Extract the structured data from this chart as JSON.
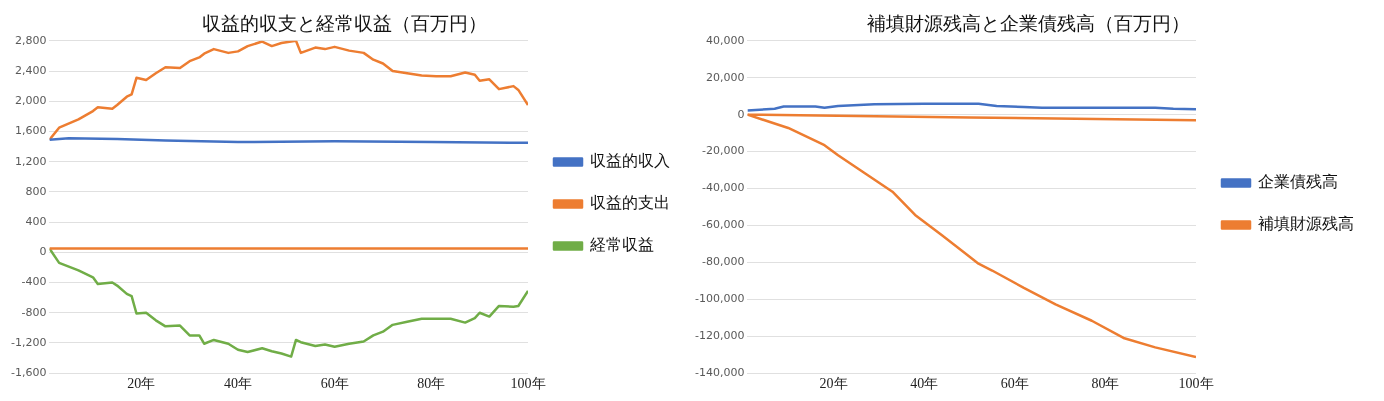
{
  "chart_data": [
    {
      "type": "line",
      "title": "収益的収支と経常収益（百万円）",
      "xlim": [
        1,
        100
      ],
      "xticks": [
        {
          "value": 20,
          "label": "20年"
        },
        {
          "value": 40,
          "label": "40年"
        },
        {
          "value": 60,
          "label": "60年"
        },
        {
          "value": 80,
          "label": "80年"
        },
        {
          "value": 100,
          "label": "100年"
        }
      ],
      "ylim": [
        -1600,
        2800
      ],
      "yticks": [
        {
          "value": -1600,
          "label": "-1,600"
        },
        {
          "value": -1200,
          "label": "-1,200"
        },
        -800,
        -400,
        0,
        400,
        800,
        {
          "value": 1200,
          "label": "1,200"
        },
        {
          "value": 1600,
          "label": "1,600"
        },
        {
          "value": 2000,
          "label": "2,000"
        },
        {
          "value": 2400,
          "label": "2,400"
        },
        {
          "value": 2800,
          "label": "2,800"
        }
      ],
      "grid": "y",
      "legend": "right",
      "marker": "none",
      "series": [
        {
          "name": "収益的収入",
          "color": "#4472c4",
          "x": [
            1,
            5,
            15,
            25,
            40,
            60,
            80,
            100
          ],
          "values": [
            1490,
            1510,
            1500,
            1480,
            1460,
            1470,
            1460,
            1450
          ]
        },
        {
          "name": "収益的支出",
          "color": "#ed7d31",
          "x": [
            1,
            3,
            7,
            10,
            11,
            14,
            15,
            17,
            18,
            19,
            21,
            23,
            25,
            28,
            30,
            32,
            33,
            35,
            38,
            40,
            42,
            45,
            47,
            49,
            51,
            52,
            53,
            56,
            58,
            60,
            63,
            66,
            68,
            70,
            72,
            75,
            78,
            81,
            84,
            87,
            89,
            90,
            92,
            94,
            97,
            98,
            100
          ],
          "values": [
            1490,
            1650,
            1760,
            1870,
            1920,
            1900,
            1950,
            2060,
            2090,
            2310,
            2280,
            2370,
            2450,
            2440,
            2530,
            2580,
            2630,
            2690,
            2640,
            2660,
            2730,
            2790,
            2730,
            2770,
            2790,
            2800,
            2640,
            2710,
            2690,
            2720,
            2670,
            2640,
            2550,
            2500,
            2400,
            2370,
            2340,
            2330,
            2330,
            2380,
            2350,
            2270,
            2290,
            2160,
            2200,
            2150,
            1950
          ]
        },
        {
          "color": "#ed7d31",
          "x": [
            1,
            100
          ],
          "values": [
            50,
            50
          ]
        },
        {
          "name": "経常収益",
          "color": "#70ad47",
          "x": [
            1,
            3,
            7,
            10,
            11,
            14,
            15,
            17,
            18,
            19,
            21,
            23,
            25,
            28,
            30,
            32,
            33,
            35,
            38,
            40,
            42,
            45,
            47,
            49,
            51,
            52,
            53,
            56,
            58,
            60,
            63,
            66,
            68,
            70,
            72,
            75,
            78,
            81,
            84,
            87,
            89,
            90,
            92,
            94,
            97,
            98,
            100
          ],
          "values": [
            50,
            -140,
            -240,
            -330,
            -420,
            -400,
            -440,
            -550,
            -580,
            -810,
            -800,
            -900,
            -980,
            -970,
            -1100,
            -1100,
            -1210,
            -1160,
            -1210,
            -1290,
            -1320,
            -1270,
            -1310,
            -1340,
            -1380,
            -1160,
            -1190,
            -1240,
            -1220,
            -1250,
            -1210,
            -1180,
            -1100,
            -1050,
            -960,
            -920,
            -880,
            -880,
            -880,
            -930,
            -870,
            -800,
            -850,
            -710,
            -720,
            -710,
            -510
          ]
        }
      ]
    },
    {
      "type": "line",
      "title": "補填財源残高と企業債残高（百万円）",
      "xlim": [
        1,
        100
      ],
      "xticks": [
        {
          "value": 20,
          "label": "20年"
        },
        {
          "value": 40,
          "label": "40年"
        },
        {
          "value": 60,
          "label": "60年"
        },
        {
          "value": 80,
          "label": "80年"
        },
        {
          "value": 100,
          "label": "100年"
        }
      ],
      "ylim": [
        -140000,
        40000
      ],
      "yticks": [
        {
          "value": -140000,
          "label": "-140,000"
        },
        {
          "value": -120000,
          "label": "-120,000"
        },
        {
          "value": -100000,
          "label": "-100,000"
        },
        {
          "value": -80000,
          "label": "-80,000"
        },
        {
          "value": -60000,
          "label": "-60,000"
        },
        {
          "value": -40000,
          "label": "-40,000"
        },
        {
          "value": -20000,
          "label": "-20,000"
        },
        0,
        {
          "value": 20000,
          "label": "20,000"
        },
        {
          "value": 40000,
          "label": "40,000"
        }
      ],
      "grid": "y",
      "legend": "right",
      "marker": "none",
      "series": [
        {
          "name": "企業債残高",
          "color": "#4472c4",
          "x": [
            1,
            7,
            9,
            16,
            18,
            21,
            29,
            40,
            52,
            56,
            62,
            66,
            91,
            95,
            100
          ],
          "values": [
            2200,
            3200,
            4400,
            4400,
            3700,
            4700,
            5700,
            5900,
            5900,
            4700,
            4200,
            3700,
            3700,
            3200,
            3000
          ]
        },
        {
          "color": "#ed7d31",
          "x": [
            1,
            50,
            100
          ],
          "values": [
            0,
            -1500,
            -3000
          ]
        },
        {
          "name": "補填財源残高",
          "color": "#ed7d31",
          "x": [
            1,
            10,
            18,
            21,
            27,
            33,
            38,
            44,
            52,
            55,
            62,
            69,
            77,
            84,
            91,
            100
          ],
          "values": [
            0,
            -7200,
            -16500,
            -22000,
            -31900,
            -41700,
            -54300,
            -65400,
            -80700,
            -84400,
            -93800,
            -102700,
            -111600,
            -120900,
            -126000,
            -131300
          ]
        }
      ]
    }
  ]
}
